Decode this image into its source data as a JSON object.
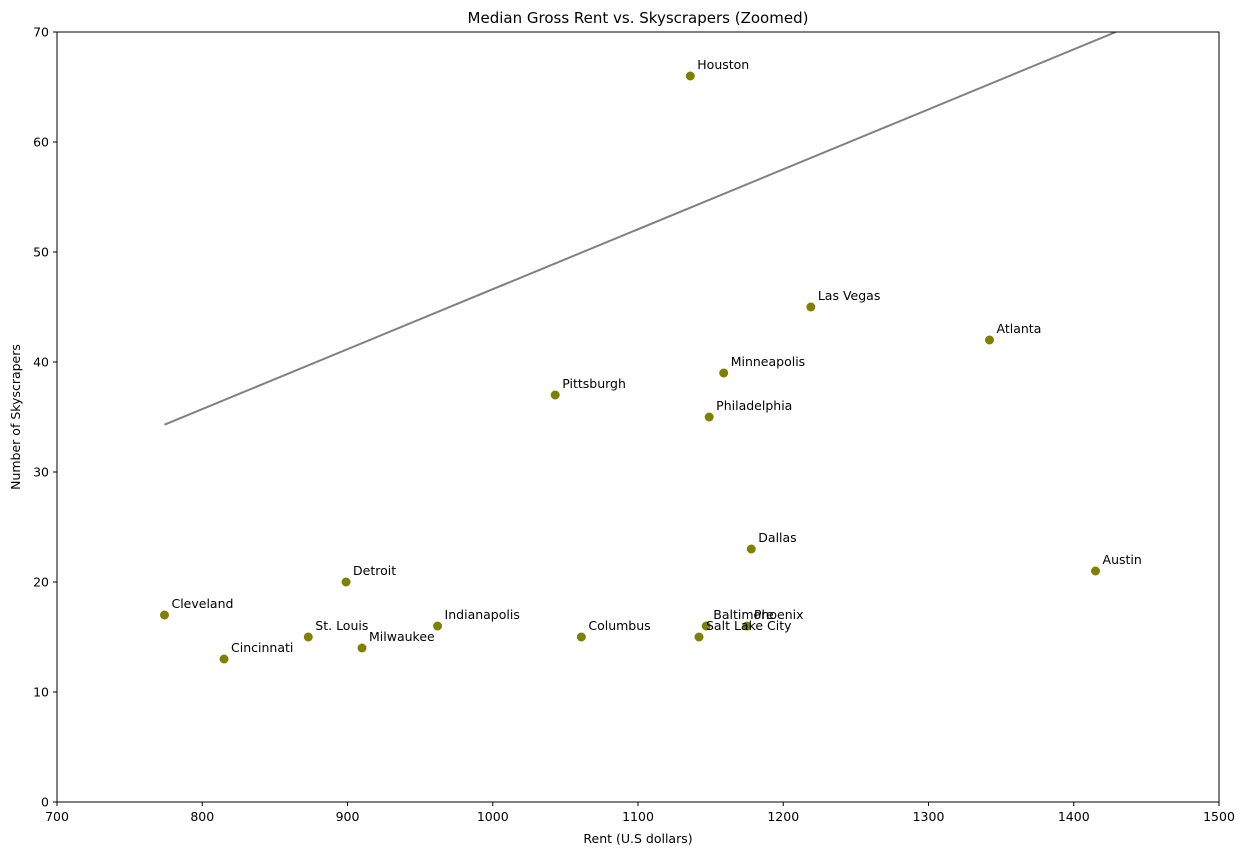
{
  "chart_data": {
    "type": "scatter",
    "title": "Median Gross Rent vs. Skyscrapers (Zoomed)",
    "xlabel": "Rent (U.S dollars)",
    "ylabel": "Number of Skyscrapers",
    "xlim": [
      700,
      1500
    ],
    "ylim": [
      0,
      70
    ],
    "xticks": [
      700,
      800,
      900,
      1000,
      1100,
      1200,
      1300,
      1400,
      1500
    ],
    "yticks": [
      0,
      10,
      20,
      30,
      40,
      50,
      60,
      70
    ],
    "grid": false,
    "point_color": "#808000",
    "line_color": "#808080",
    "points": [
      {
        "label": "Houston",
        "x": 1136,
        "y": 66
      },
      {
        "label": "Las Vegas",
        "x": 1219,
        "y": 45
      },
      {
        "label": "Atlanta",
        "x": 1342,
        "y": 42
      },
      {
        "label": "Minneapolis",
        "x": 1159,
        "y": 39
      },
      {
        "label": "Pittsburgh",
        "x": 1043,
        "y": 37
      },
      {
        "label": "Philadelphia",
        "x": 1149,
        "y": 35
      },
      {
        "label": "Dallas",
        "x": 1178,
        "y": 23
      },
      {
        "label": "Austin",
        "x": 1415,
        "y": 21
      },
      {
        "label": "Detroit",
        "x": 899,
        "y": 20
      },
      {
        "label": "Cleveland",
        "x": 774,
        "y": 17
      },
      {
        "label": "Indianapolis",
        "x": 962,
        "y": 16
      },
      {
        "label": "Baltimore",
        "x": 1147,
        "y": 16
      },
      {
        "label": "Phoenix",
        "x": 1175,
        "y": 16
      },
      {
        "label": "St. Louis",
        "x": 873,
        "y": 15
      },
      {
        "label": "Columbus",
        "x": 1061,
        "y": 15
      },
      {
        "label": "Salt Lake City",
        "x": 1142,
        "y": 15
      },
      {
        "label": "Milwaukee",
        "x": 910,
        "y": 14
      },
      {
        "label": "Cincinnati",
        "x": 815,
        "y": 13
      }
    ],
    "trend_line": {
      "x": [
        774,
        1429
      ],
      "y": [
        34.3,
        70
      ]
    }
  }
}
